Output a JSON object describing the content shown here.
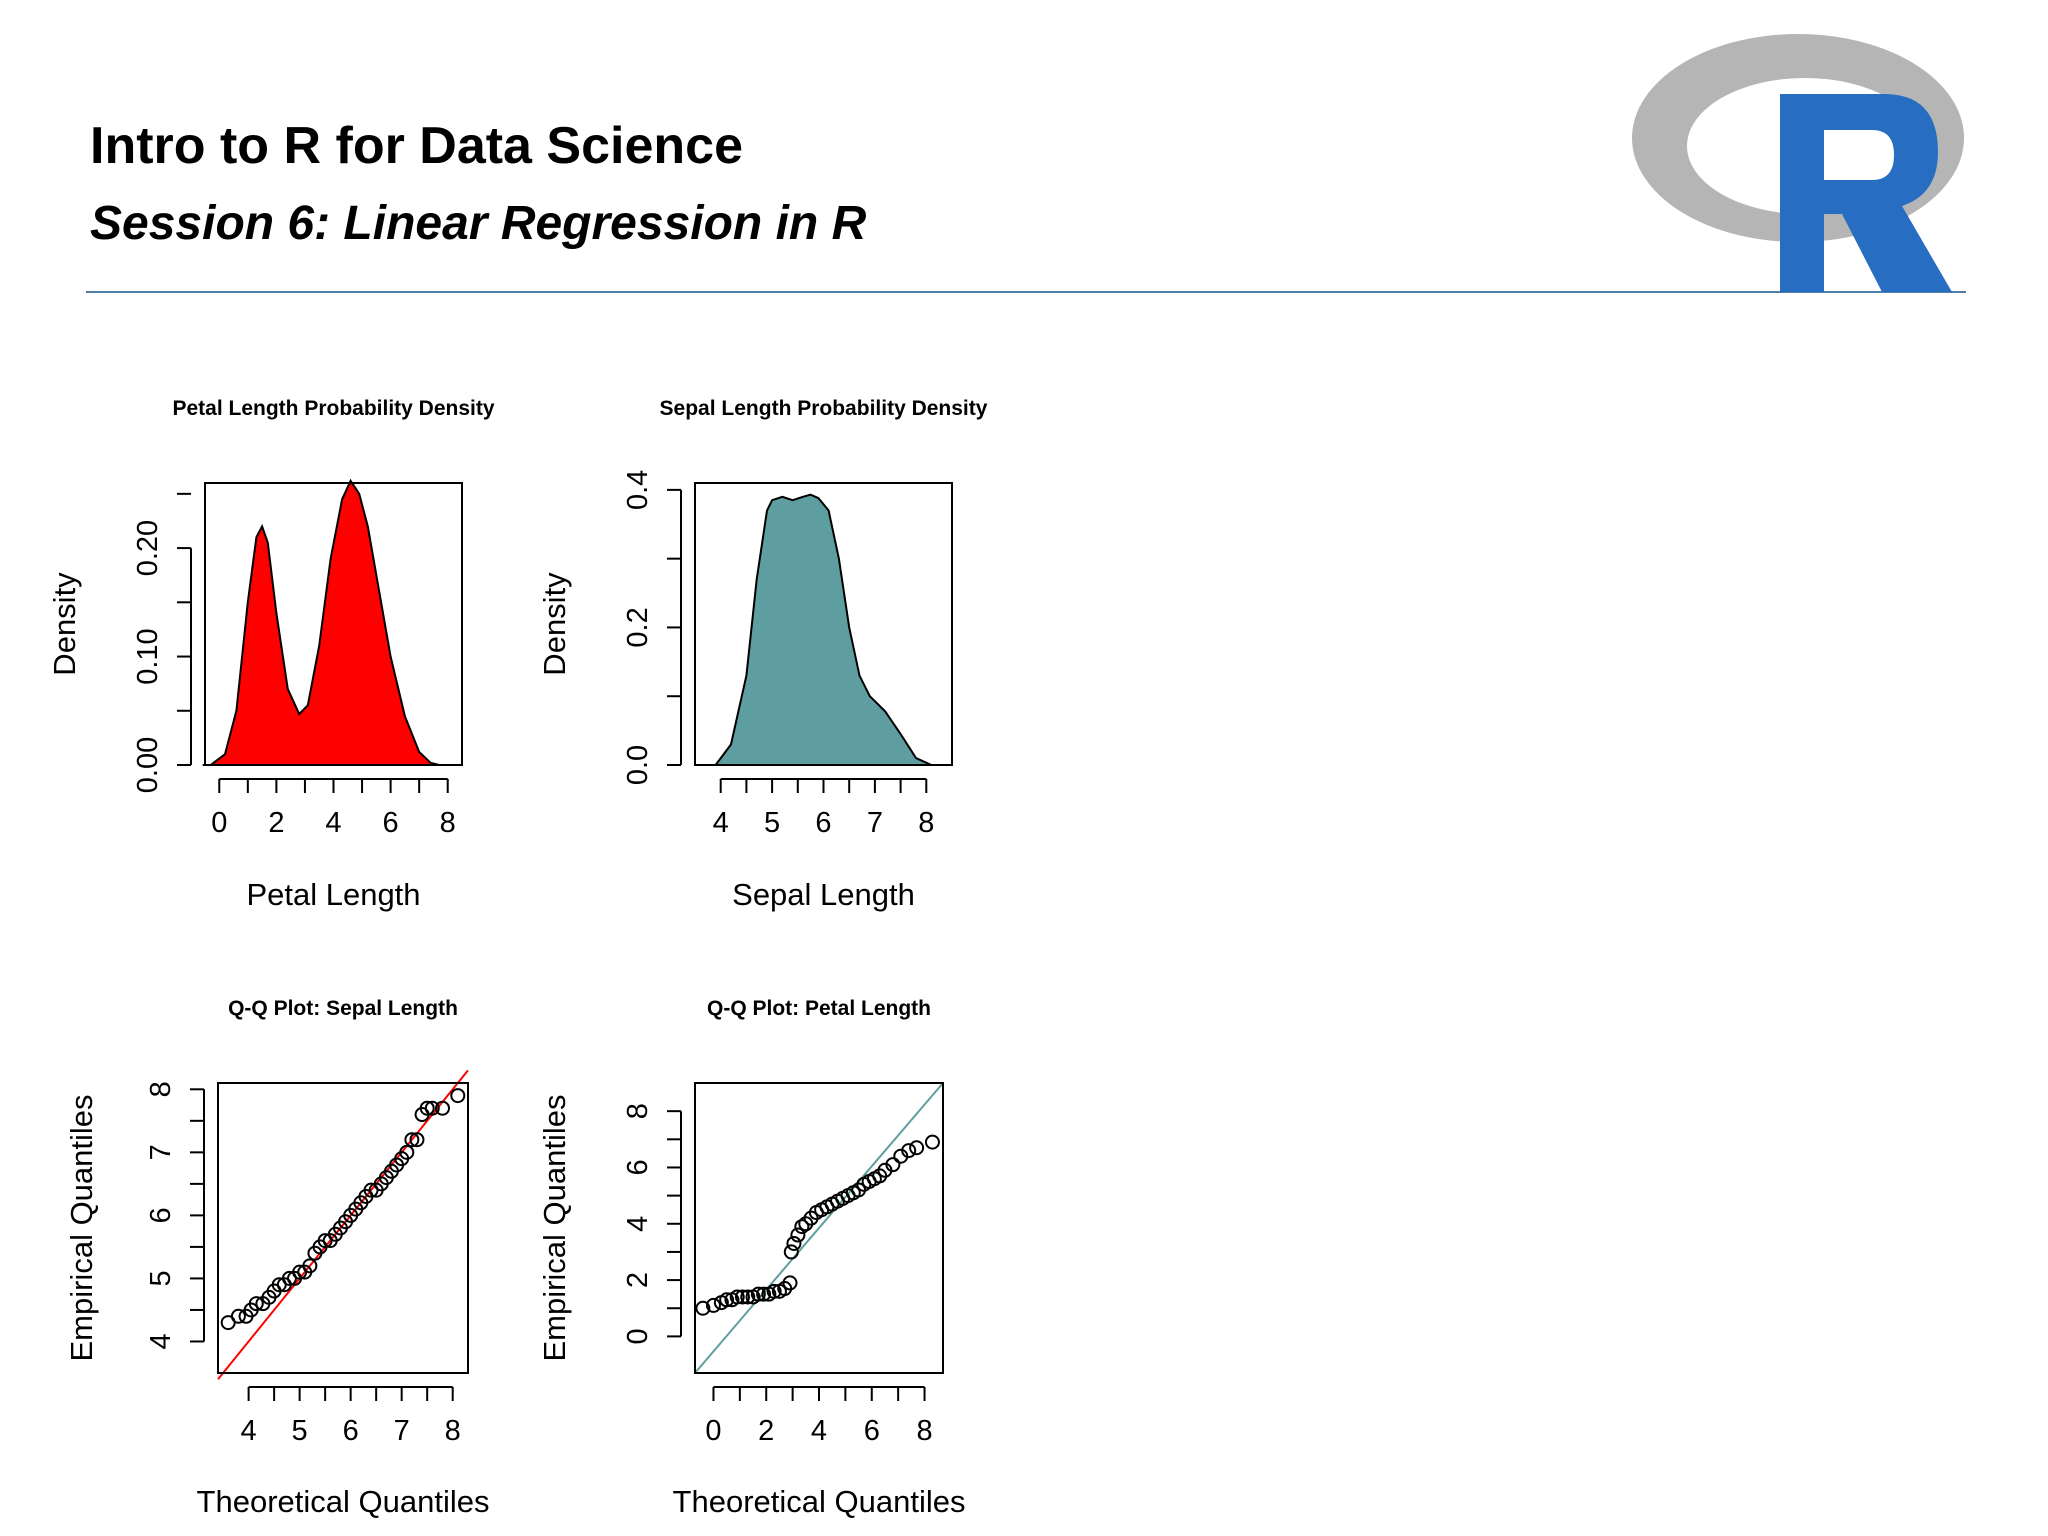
{
  "slide": {
    "title": "Intro to R for Data Science",
    "subtitle": "Session 6: Linear Regression in R"
  },
  "logo": {
    "icon": "r-logo-icon",
    "letter": "R",
    "ring_color": "#b5b5b5",
    "letter_color": "#276dc2"
  },
  "chart_data": [
    {
      "type": "area",
      "title": "Petal Length Probability Density",
      "xlabel": "Petal Length",
      "ylabel": "Density",
      "xlim": [
        -0.5,
        8.5
      ],
      "ylim": [
        0,
        0.26
      ],
      "xticks": [
        "0",
        "2",
        "4",
        "6",
        "8"
      ],
      "yticks": [
        "0.00",
        "0.10",
        "0.20"
      ],
      "fill_color": "#ff0000",
      "x": [
        -0.3,
        0.2,
        0.6,
        1.0,
        1.3,
        1.5,
        1.7,
        2.0,
        2.4,
        2.8,
        3.1,
        3.5,
        3.9,
        4.3,
        4.6,
        4.9,
        5.2,
        5.6,
        6.0,
        6.5,
        7.0,
        7.4,
        7.7
      ],
      "y": [
        0.0,
        0.01,
        0.05,
        0.15,
        0.21,
        0.22,
        0.205,
        0.14,
        0.07,
        0.047,
        0.055,
        0.11,
        0.19,
        0.245,
        0.262,
        0.25,
        0.22,
        0.16,
        0.1,
        0.045,
        0.012,
        0.002,
        0.0
      ]
    },
    {
      "type": "area",
      "title": "Sepal Length Probability Density",
      "xlabel": "Sepal Length",
      "ylabel": "Density",
      "xlim": [
        3.5,
        8.5
      ],
      "ylim": [
        0,
        0.41
      ],
      "xticks": [
        "4",
        "5",
        "6",
        "7",
        "8"
      ],
      "yticks": [
        "0.0",
        "0.2",
        "0.4"
      ],
      "fill_color": "#5f9ea0",
      "x": [
        3.9,
        4.2,
        4.5,
        4.7,
        4.9,
        5.0,
        5.2,
        5.4,
        5.6,
        5.75,
        5.9,
        6.1,
        6.3,
        6.5,
        6.7,
        6.9,
        7.2,
        7.5,
        7.8,
        8.1
      ],
      "y": [
        0.0,
        0.03,
        0.13,
        0.27,
        0.37,
        0.385,
        0.39,
        0.385,
        0.39,
        0.393,
        0.388,
        0.37,
        0.3,
        0.2,
        0.13,
        0.1,
        0.078,
        0.045,
        0.01,
        0.0
      ]
    },
    {
      "type": "scatter",
      "title": "Q-Q Plot: Sepal Length",
      "xlabel": "Theoretical Quantiles",
      "ylabel": "Empirical Quantiles",
      "xlim": [
        3.4,
        8.3
      ],
      "ylim": [
        3.5,
        8.1
      ],
      "xticks": [
        "4",
        "5",
        "6",
        "7",
        "8"
      ],
      "yticks": [
        "4",
        "5",
        "6",
        "7",
        "8"
      ],
      "line_color": "#ff0000",
      "reference_line": [
        [
          3.4,
          3.4
        ],
        [
          8.3,
          8.3
        ]
      ],
      "x": [
        3.6,
        3.8,
        3.95,
        4.05,
        4.15,
        4.28,
        4.4,
        4.5,
        4.6,
        4.7,
        4.8,
        4.9,
        5.0,
        5.1,
        5.2,
        5.3,
        5.4,
        5.5,
        5.6,
        5.7,
        5.8,
        5.9,
        6.0,
        6.1,
        6.2,
        6.3,
        6.4,
        6.5,
        6.6,
        6.7,
        6.8,
        6.9,
        7.0,
        7.1,
        7.2,
        7.3,
        7.4,
        7.5,
        7.6,
        7.8,
        8.1
      ],
      "y": [
        4.3,
        4.4,
        4.4,
        4.5,
        4.6,
        4.6,
        4.7,
        4.8,
        4.9,
        4.9,
        5.0,
        5.0,
        5.1,
        5.1,
        5.2,
        5.4,
        5.5,
        5.6,
        5.6,
        5.7,
        5.8,
        5.9,
        6.0,
        6.1,
        6.2,
        6.3,
        6.4,
        6.4,
        6.5,
        6.6,
        6.7,
        6.8,
        6.9,
        7.0,
        7.2,
        7.2,
        7.6,
        7.7,
        7.7,
        7.7,
        7.9
      ]
    },
    {
      "type": "scatter",
      "title": "Q-Q Plot: Petal Length",
      "xlabel": "Theoretical Quantiles",
      "ylabel": "Empirical Quantiles",
      "xlim": [
        -0.7,
        8.7
      ],
      "ylim": [
        -1.3,
        9.0
      ],
      "xticks": [
        "0",
        "2",
        "4",
        "6",
        "8"
      ],
      "yticks": [
        "0",
        "2",
        "4",
        "6",
        "8"
      ],
      "line_color": "#5f9ea0",
      "reference_line": [
        [
          -0.7,
          -1.3
        ],
        [
          8.7,
          9.0
        ]
      ],
      "x": [
        -0.4,
        0.0,
        0.3,
        0.5,
        0.7,
        0.9,
        1.1,
        1.3,
        1.5,
        1.7,
        1.9,
        2.1,
        2.3,
        2.5,
        2.7,
        2.9,
        2.95,
        3.05,
        3.2,
        3.35,
        3.5,
        3.7,
        3.9,
        4.1,
        4.3,
        4.5,
        4.7,
        4.9,
        5.1,
        5.3,
        5.5,
        5.7,
        5.9,
        6.1,
        6.3,
        6.5,
        6.8,
        7.1,
        7.4,
        7.7,
        8.3
      ],
      "y": [
        1.0,
        1.1,
        1.2,
        1.3,
        1.3,
        1.4,
        1.4,
        1.4,
        1.4,
        1.5,
        1.5,
        1.5,
        1.6,
        1.6,
        1.7,
        1.9,
        3.0,
        3.3,
        3.6,
        3.9,
        4.0,
        4.2,
        4.4,
        4.5,
        4.6,
        4.7,
        4.8,
        4.9,
        5.0,
        5.1,
        5.2,
        5.4,
        5.5,
        5.6,
        5.7,
        5.9,
        6.1,
        6.4,
        6.6,
        6.7,
        6.9
      ]
    }
  ]
}
